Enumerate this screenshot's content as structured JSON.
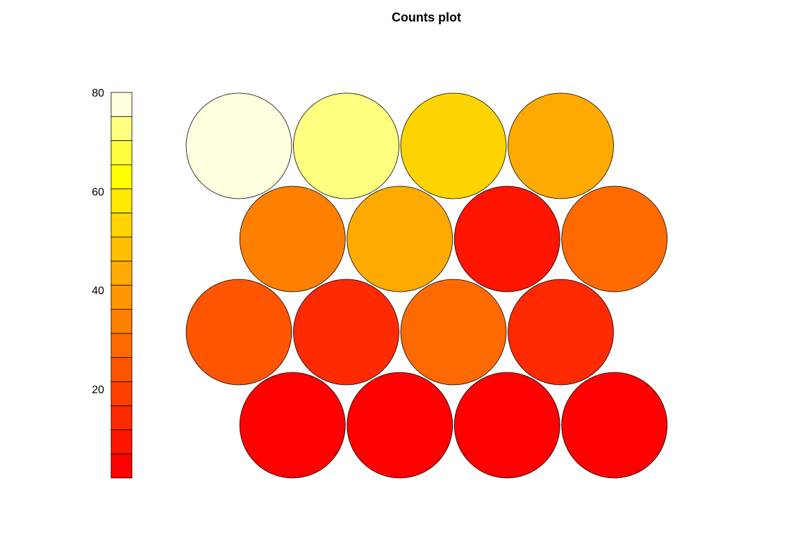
{
  "chart_data": {
    "type": "heatmap",
    "title": "Counts plot",
    "grid": "hexagonal",
    "rows": 4,
    "cols": 4,
    "values": [
      [
        80,
        72,
        52,
        44
      ],
      [
        36,
        44,
        10,
        30
      ],
      [
        26,
        16,
        30,
        12
      ],
      [
        2,
        2,
        2,
        2
      ]
    ],
    "scale": {
      "min": 2,
      "max": 80,
      "ticks": [
        20,
        40,
        60,
        80
      ],
      "colors": [
        "#FF0000",
        "#FF1400",
        "#FF2A00",
        "#FF3F00",
        "#FF5500",
        "#FF6A00",
        "#FF7F00",
        "#FF9500",
        "#FFAA00",
        "#FFBF00",
        "#FFD400",
        "#FFEA00",
        "#FFFF00",
        "#FFFF40",
        "#FFFF80",
        "#FFFFDF"
      ]
    },
    "legend": "left"
  }
}
